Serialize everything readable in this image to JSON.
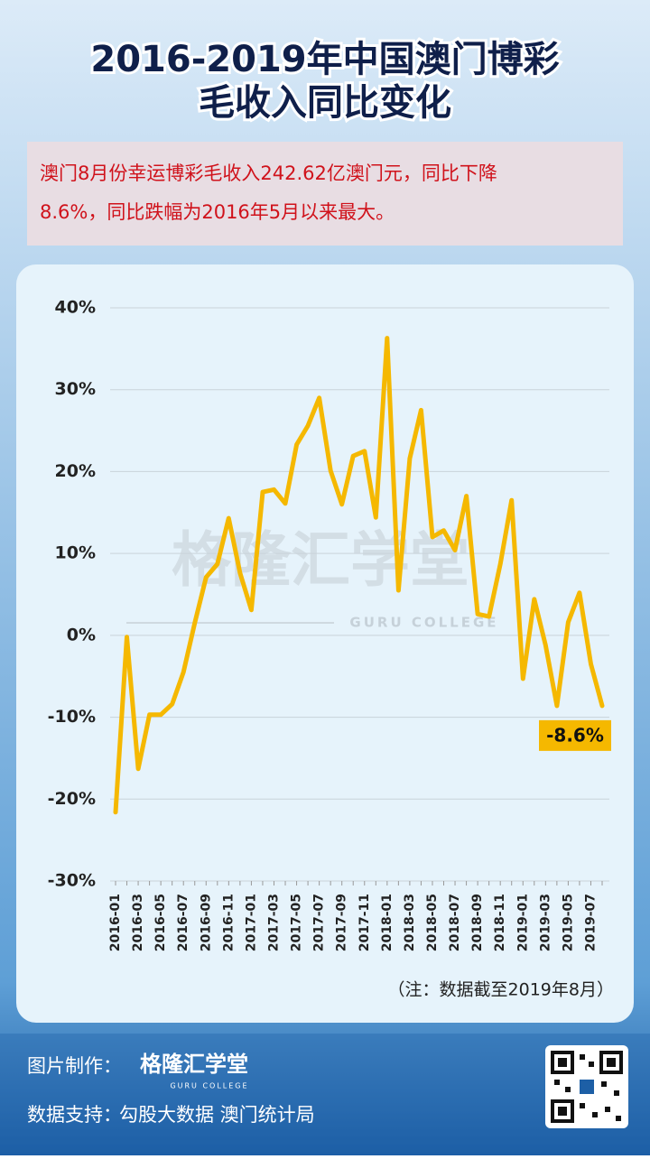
{
  "title_lines": [
    "2016-2019年中国澳门博彩",
    "毛收入同比变化"
  ],
  "summary_lines": [
    "澳门8月份幸运博彩毛收入242.62亿澳门元，同比下降",
    "8.6%，同比跌幅为2016年5月以来最大。"
  ],
  "watermark": {
    "name": "格隆汇学堂",
    "tagline": "GURU COLLEGE"
  },
  "chart_data": {
    "type": "line",
    "categories": [
      "2016-01",
      null,
      "2016-03",
      null,
      "2016-05",
      null,
      "2016-07",
      null,
      "2016-09",
      null,
      "2016-11",
      null,
      "2017-01",
      null,
      "2017-03",
      null,
      "2017-05",
      null,
      "2017-07",
      null,
      "2017-09",
      null,
      "2017-11",
      null,
      "2018-01",
      null,
      "2018-03",
      null,
      "2018-05",
      null,
      "2018-07",
      null,
      "2018-09",
      null,
      "2018-11",
      null,
      "2019-01",
      null,
      "2019-03",
      null,
      "2019-05",
      null,
      "2019-07",
      null
    ],
    "values": [
      -21.6,
      -0.2,
      -16.3,
      -9.7,
      -9.7,
      -8.4,
      -4.5,
      1.5,
      7.1,
      8.7,
      14.3,
      7.6,
      3.1,
      17.5,
      17.8,
      16.1,
      23.3,
      25.6,
      29.0,
      20.1,
      16.0,
      21.9,
      22.5,
      14.4,
      36.3,
      5.5,
      21.6,
      27.5,
      12.0,
      12.8,
      10.4,
      17.0,
      2.6,
      2.3,
      8.7,
      16.5,
      -5.3,
      4.4,
      -1.2,
      -8.6,
      1.6,
      5.2,
      -3.5,
      -8.6
    ],
    "value_labels": [
      null,
      null,
      null,
      null,
      null,
      null,
      null,
      null,
      null,
      null,
      null,
      null,
      null,
      null,
      null,
      null,
      null,
      null,
      null,
      null,
      null,
      null,
      null,
      null,
      null,
      null,
      null,
      null,
      null,
      null,
      null,
      null,
      null,
      null,
      null,
      null,
      null,
      null,
      null,
      null,
      null,
      null,
      null,
      "-8.6%"
    ],
    "color": "#f5b800",
    "ylim": [
      -30,
      40
    ],
    "yticks": [
      {
        "value": -30,
        "label": "-30%"
      },
      {
        "value": -20,
        "label": "-20%"
      },
      {
        "value": -10,
        "label": "-10%"
      },
      {
        "value": 0,
        "label": "0%"
      },
      {
        "value": 10,
        "label": "10%"
      },
      {
        "value": 20,
        "label": "20%"
      },
      {
        "value": 30,
        "label": "30%"
      },
      {
        "value": 40,
        "label": "40%"
      }
    ],
    "grid": true,
    "note": "（注：数据截至2019年8月）"
  },
  "footer": {
    "maker_label": "图片制作：",
    "logo_name": "格隆汇学堂",
    "logo_tagline": "GURU COLLEGE",
    "source_label": "数据支持：",
    "sources": "勾股大数据  澳门统计局"
  }
}
